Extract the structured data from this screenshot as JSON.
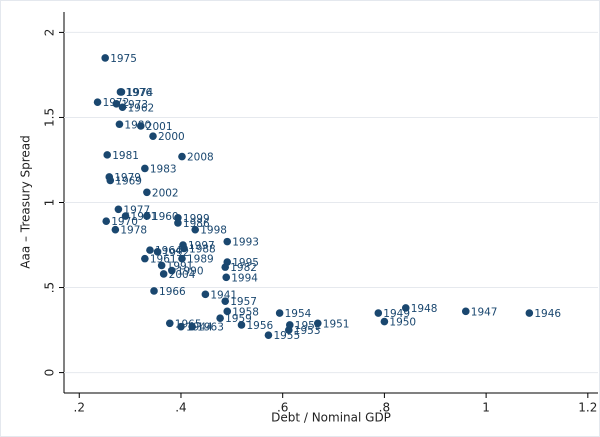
{
  "chart_data": {
    "type": "scatter",
    "x_label": "Debt / Nominal GDP",
    "y_label": "Aaa – Treasury Spread",
    "color": "#1a476f",
    "grid": true,
    "xlim": [
      0.17,
      1.22
    ],
    "ylim": [
      -0.12,
      2.12
    ],
    "xticks": [
      {
        "value": 0.2,
        "label": ".2"
      },
      {
        "value": 0.4,
        "label": ".4"
      },
      {
        "value": 0.6,
        "label": ".6"
      },
      {
        "value": 0.8,
        "label": ".8"
      },
      1,
      {
        "value": 1.2,
        "label": "1.2"
      }
    ],
    "yticks": [
      0,
      {
        "value": 0.5,
        "label": ".5"
      },
      1,
      {
        "value": 1.5,
        "label": "1.5"
      },
      2
    ],
    "point_labels": [
      "1975",
      "1976",
      "1974",
      "1972",
      "1973",
      "1962",
      "1980",
      "2001",
      "2000",
      "1981",
      "2008",
      "1983",
      "1979",
      "1969",
      "2002",
      "1977",
      "1970",
      "1971",
      "1978",
      "1960",
      "1999",
      "1986",
      "1998",
      "1993",
      "1997",
      "1988",
      "1964",
      "1992",
      "1989",
      "1995",
      "1961",
      "1991",
      "1990",
      "1982",
      "1994",
      "2004",
      "1966",
      "1941",
      "1957",
      "1958",
      "1959",
      "1954",
      "1949",
      "1948",
      "1947",
      "1946",
      "1950",
      "1951",
      "1952",
      "1956",
      "1955",
      "1953",
      "1965",
      "1963",
      "1944"
    ],
    "x": [
      0.251,
      0.281,
      0.283,
      0.236,
      0.273,
      0.285,
      0.279,
      0.321,
      0.345,
      0.255,
      0.402,
      0.329,
      0.259,
      0.261,
      0.333,
      0.277,
      0.253,
      0.291,
      0.271,
      0.333,
      0.394,
      0.394,
      0.428,
      0.491,
      0.404,
      0.406,
      0.339,
      0.354,
      0.402,
      0.491,
      0.329,
      0.362,
      0.382,
      0.487,
      0.489,
      0.366,
      0.347,
      0.448,
      0.487,
      0.491,
      0.477,
      0.594,
      0.788,
      0.842,
      0.96,
      1.085,
      0.8,
      0.669,
      0.614,
      0.519,
      0.572,
      0.612,
      0.378,
      0.422,
      0.4
    ],
    "values": [
      1.85,
      1.65,
      1.65,
      1.59,
      1.58,
      1.56,
      1.46,
      1.45,
      1.39,
      1.28,
      1.27,
      1.2,
      1.15,
      1.13,
      1.06,
      0.96,
      0.89,
      0.92,
      0.84,
      0.92,
      0.91,
      0.88,
      0.84,
      0.77,
      0.75,
      0.73,
      0.72,
      0.71,
      0.67,
      0.65,
      0.67,
      0.63,
      0.6,
      0.62,
      0.56,
      0.58,
      0.48,
      0.46,
      0.42,
      0.36,
      0.32,
      0.35,
      0.35,
      0.38,
      0.36,
      0.35,
      0.3,
      0.29,
      0.28,
      0.28,
      0.22,
      0.25,
      0.29,
      0.27,
      0.27
    ]
  }
}
